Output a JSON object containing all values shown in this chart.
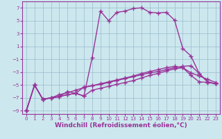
{
  "xlabel": "Windchill (Refroidissement éolien,°C)",
  "bg_color": "#cce8ee",
  "line_color": "#993399",
  "grid_color": "#99bbcc",
  "xlim": [
    -0.5,
    23.5
  ],
  "ylim": [
    -9.5,
    8.0
  ],
  "yticks": [
    -9,
    -7,
    -5,
    -3,
    -1,
    1,
    3,
    5,
    7
  ],
  "xticks": [
    0,
    1,
    2,
    3,
    4,
    5,
    6,
    7,
    8,
    9,
    10,
    11,
    12,
    13,
    14,
    15,
    16,
    17,
    18,
    19,
    20,
    21,
    22,
    23
  ],
  "lines": [
    {
      "x": [
        0,
        1,
        2,
        3,
        4,
        5,
        6,
        7,
        8,
        9,
        10,
        11,
        12,
        13,
        14,
        15,
        16,
        17,
        18,
        19,
        20,
        21,
        22,
        23
      ],
      "y": [
        -9,
        -5,
        -7.2,
        -7,
        -6.8,
        -6.5,
        -6.3,
        -6.7,
        -0.7,
        6.5,
        5.0,
        6.3,
        6.5,
        6.9,
        7.0,
        6.3,
        6.2,
        6.3,
        5.1,
        0.7,
        -0.5,
        -3.2,
        -4.5,
        -4.8
      ]
    },
    {
      "x": [
        0,
        1,
        2,
        3,
        4,
        5,
        6,
        7,
        8,
        9,
        10,
        11,
        12,
        13,
        14,
        15,
        16,
        17,
        18,
        19,
        20,
        21,
        22,
        23
      ],
      "y": [
        -9,
        -5,
        -7.2,
        -7,
        -6.8,
        -6.5,
        -6.3,
        -5.3,
        -5.1,
        -4.9,
        -4.6,
        -4.3,
        -4.0,
        -3.7,
        -3.4,
        -3.1,
        -2.9,
        -2.6,
        -2.3,
        -2.1,
        -2.0,
        -3.2,
        -4.5,
        -4.8
      ]
    },
    {
      "x": [
        0,
        1,
        2,
        3,
        4,
        5,
        6,
        7,
        8,
        9,
        10,
        11,
        12,
        13,
        14,
        15,
        16,
        17,
        18,
        19,
        20,
        21,
        22,
        23
      ],
      "y": [
        -9,
        -5,
        -7.2,
        -7,
        -6.8,
        -6.0,
        -6.3,
        -6.7,
        -5.8,
        -5.5,
        -5.2,
        -4.9,
        -4.6,
        -4.3,
        -3.9,
        -3.5,
        -3.2,
        -2.8,
        -2.5,
        -2.3,
        -3.5,
        -4.5,
        -4.6,
        -4.8
      ]
    },
    {
      "x": [
        0,
        1,
        2,
        3,
        4,
        5,
        6,
        7,
        8,
        9,
        10,
        11,
        12,
        13,
        14,
        15,
        16,
        17,
        18,
        19,
        20,
        21,
        22,
        23
      ],
      "y": [
        -9,
        -5,
        -7.2,
        -7,
        -6.5,
        -6.2,
        -5.8,
        -5.4,
        -5.1,
        -4.8,
        -4.5,
        -4.2,
        -3.9,
        -3.6,
        -3.2,
        -2.9,
        -2.6,
        -2.3,
        -2.1,
        -2.3,
        -3.1,
        -3.6,
        -4.1,
        -4.6
      ]
    }
  ],
  "marker": "+",
  "markersize": 4,
  "linewidth": 1.0,
  "markeredgewidth": 1.0,
  "tick_fontsize": 5,
  "label_fontsize": 6.5
}
